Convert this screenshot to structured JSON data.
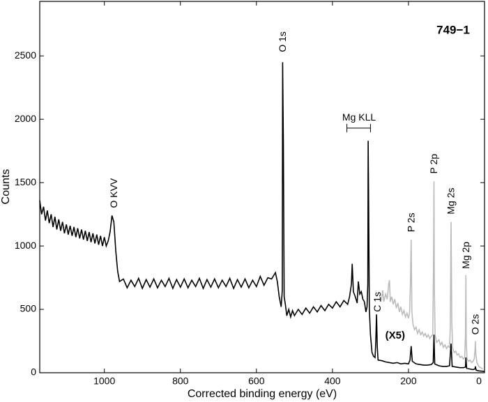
{
  "chart_data": {
    "type": "line",
    "title": "749−1",
    "xlabel": "Corrected binding energy (eV)",
    "ylabel": "Counts",
    "xlim": [
      1170,
      0
    ],
    "xticks": [
      1000,
      800,
      600,
      400,
      200,
      0
    ],
    "ylim": [
      0,
      2930
    ],
    "yticks": [
      0,
      500,
      1000,
      1500,
      2000,
      2500
    ],
    "annotations": [
      "O KVV",
      "O 1s",
      "Mg KLL",
      "C 1s",
      "P 2s",
      "P 2p",
      "Mg 2s",
      "Mg 2p",
      "O 2s",
      "(X5)"
    ],
    "series": [
      {
        "color": "#000000",
        "x": [
          1170,
          1165,
          1160,
          1155,
          1150,
          1145,
          1140,
          1135,
          1130,
          1125,
          1120,
          1115,
          1110,
          1105,
          1100,
          1095,
          1090,
          1085,
          1080,
          1075,
          1070,
          1065,
          1060,
          1055,
          1050,
          1045,
          1040,
          1035,
          1030,
          1025,
          1020,
          1015,
          1010,
          1005,
          1000,
          995,
          990,
          985,
          980,
          975,
          970,
          965,
          960,
          950,
          940,
          930,
          920,
          910,
          900,
          890,
          880,
          870,
          860,
          850,
          840,
          830,
          820,
          810,
          800,
          790,
          780,
          770,
          760,
          750,
          740,
          730,
          720,
          710,
          700,
          690,
          680,
          670,
          660,
          650,
          640,
          630,
          620,
          610,
          600,
          590,
          580,
          570,
          560,
          550,
          545,
          540,
          535,
          532,
          531,
          529,
          527,
          524,
          520,
          515,
          510,
          505,
          500,
          490,
          480,
          470,
          460,
          450,
          440,
          430,
          420,
          410,
          400,
          390,
          380,
          370,
          360,
          355,
          350,
          348,
          345,
          340,
          335,
          332,
          328,
          324,
          320,
          316,
          312,
          309,
          307,
          306,
          305,
          303,
          300,
          296,
          292,
          288,
          286,
          284,
          282,
          280,
          270,
          260,
          250,
          240,
          230,
          220,
          210,
          200,
          196,
          193,
          190,
          180,
          170,
          160,
          150,
          140,
          135,
          133,
          131,
          120,
          110,
          100,
          92,
          88,
          85,
          75,
          65,
          55,
          50,
          49,
          47,
          40,
          30,
          25,
          24,
          22,
          15,
          5,
          1
        ],
        "values": [
          1360,
          1250,
          1310,
          1200,
          1280,
          1180,
          1250,
          1150,
          1230,
          1130,
          1210,
          1120,
          1190,
          1100,
          1170,
          1090,
          1160,
          1080,
          1150,
          1070,
          1140,
          1060,
          1130,
          1050,
          1120,
          1040,
          1110,
          1030,
          1100,
          1020,
          1090,
          1010,
          1080,
          1000,
          1070,
          1000,
          1040,
          1110,
          1240,
          1190,
          960,
          800,
          720,
          740,
          670,
          730,
          680,
          745,
          665,
          735,
          675,
          740,
          670,
          730,
          680,
          745,
          665,
          735,
          675,
          740,
          670,
          730,
          680,
          745,
          665,
          735,
          675,
          740,
          670,
          730,
          680,
          745,
          665,
          735,
          675,
          740,
          670,
          730,
          680,
          760,
          690,
          750,
          740,
          790,
          720,
          600,
          520,
          650,
          2450,
          1800,
          600,
          540,
          450,
          500,
          440,
          490,
          450,
          500,
          460,
          510,
          470,
          520,
          480,
          530,
          490,
          540,
          510,
          560,
          520,
          570,
          540,
          600,
          700,
          860,
          640,
          600,
          550,
          720,
          620,
          640,
          580,
          560,
          480,
          520,
          700,
          1830,
          1400,
          500,
          300,
          160,
          130,
          120,
          240,
          460,
          200,
          100,
          95,
          85,
          80,
          75,
          80,
          70,
          75,
          70,
          100,
          210,
          90,
          70,
          65,
          60,
          60,
          65,
          80,
          300,
          70,
          55,
          50,
          50,
          55,
          230,
          50,
          45,
          40,
          40,
          45,
          120,
          35,
          30,
          25,
          30,
          50,
          20,
          15,
          12,
          10
        ]
      },
      {
        "color": "#bbbbbb",
        "x": [
          275,
          272,
          268,
          265,
          260,
          256,
          252,
          250,
          248,
          244,
          240,
          236,
          232,
          228,
          224,
          220,
          216,
          212,
          208,
          204,
          200,
          197,
          195,
          193,
          191,
          188,
          184,
          180,
          176,
          172,
          168,
          164,
          160,
          156,
          152,
          148,
          144,
          140,
          136,
          134,
          133,
          132,
          130,
          126,
          120,
          116,
          112,
          108,
          104,
          100,
          96,
          92,
          90,
          88,
          86,
          84,
          80,
          76,
          72,
          68,
          64,
          60,
          56,
          52,
          50,
          49,
          48,
          46,
          42,
          38,
          34,
          30,
          27,
          25,
          24,
          23,
          20,
          15,
          10,
          5
        ],
        "values": [
          600,
          560,
          650,
          560,
          620,
          580,
          700,
          730,
          560,
          600,
          540,
          580,
          510,
          550,
          480,
          520,
          460,
          490,
          440,
          470,
          430,
          480,
          700,
          1050,
          480,
          380,
          340,
          360,
          310,
          340,
          300,
          320,
          290,
          310,
          280,
          300,
          270,
          290,
          300,
          900,
          1510,
          700,
          300,
          240,
          260,
          220,
          240,
          200,
          220,
          190,
          210,
          200,
          350,
          1190,
          400,
          200,
          160,
          170,
          140,
          150,
          120,
          130,
          110,
          120,
          300,
          770,
          250,
          110,
          90,
          100,
          80,
          90,
          110,
          180,
          250,
          150,
          80,
          50,
          40,
          30
        ]
      }
    ]
  }
}
